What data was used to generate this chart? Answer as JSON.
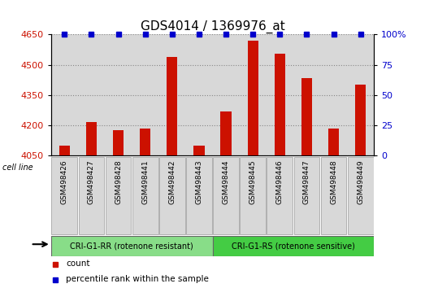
{
  "title": "GDS4014 / 1369976_at",
  "samples": [
    "GSM498426",
    "GSM498427",
    "GSM498428",
    "GSM498441",
    "GSM498442",
    "GSM498443",
    "GSM498444",
    "GSM498445",
    "GSM498446",
    "GSM498447",
    "GSM498448",
    "GSM498449"
  ],
  "counts": [
    4100,
    4215,
    4175,
    4185,
    4540,
    4100,
    4270,
    4620,
    4555,
    4435,
    4185,
    4400
  ],
  "percentile_ranks": [
    100,
    100,
    100,
    100,
    100,
    100,
    100,
    100,
    100,
    100,
    100,
    100
  ],
  "group1_label": "CRI-G1-RR (rotenone resistant)",
  "group2_label": "CRI-G1-RS (rotenone sensitive)",
  "group1_count": 6,
  "group2_count": 6,
  "ylim_left": [
    4050,
    4650
  ],
  "ylim_right": [
    0,
    100
  ],
  "yticks_left": [
    4050,
    4200,
    4350,
    4500,
    4650
  ],
  "yticks_right": [
    0,
    25,
    50,
    75,
    100
  ],
  "bar_color": "#cc1100",
  "dot_color": "#0000cc",
  "group1_color": "#88dd88",
  "group2_color": "#44cc44",
  "bar_bg_color": "#d8d8d8",
  "plot_bg_color": "#ffffff",
  "grid_color": "#888888",
  "legend_count_color": "#cc1100",
  "legend_pct_color": "#0000cc",
  "title_fontsize": 11,
  "tick_fontsize": 8,
  "label_fontsize": 7
}
